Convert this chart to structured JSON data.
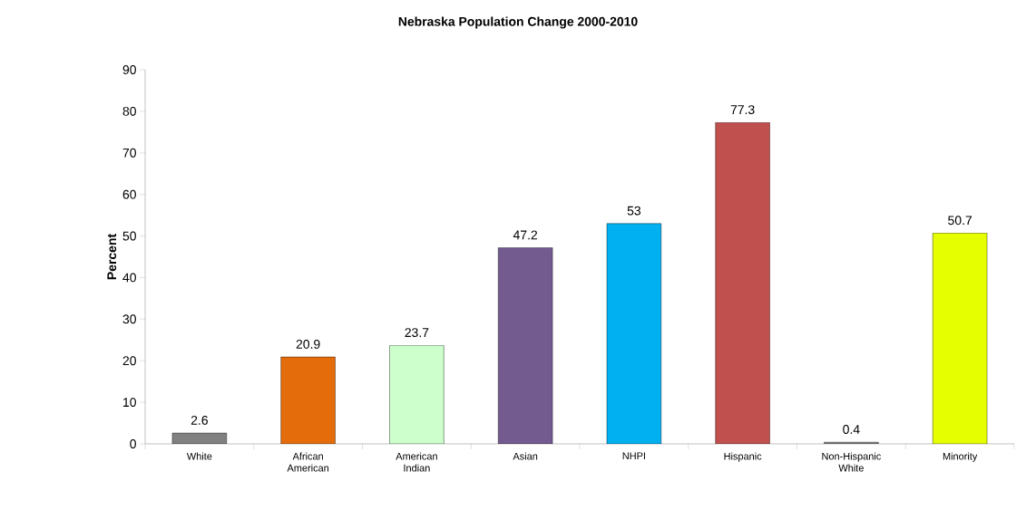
{
  "chart_data": {
    "type": "bar",
    "title": "Nebraska Population Change 2000-2010",
    "ylabel": "Percent",
    "categories": [
      "White",
      "African American",
      "American Indian",
      "Asian",
      "NHPI",
      "Hispanic",
      "Non-Hispanic White",
      "Minority"
    ],
    "values": [
      2.6,
      20.9,
      23.7,
      47.2,
      53,
      77.3,
      0.4,
      50.7
    ],
    "colors": [
      "#808080",
      "#e46c0a",
      "#ccffcc",
      "#735a8f",
      "#00b0f0",
      "#c0504d",
      "#808080",
      "#e6ff00"
    ],
    "ylim": [
      0,
      90
    ],
    "yticks": [
      0,
      10,
      20,
      30,
      40,
      50,
      60,
      70,
      80,
      90
    ],
    "data_labels": true,
    "grid": false
  }
}
